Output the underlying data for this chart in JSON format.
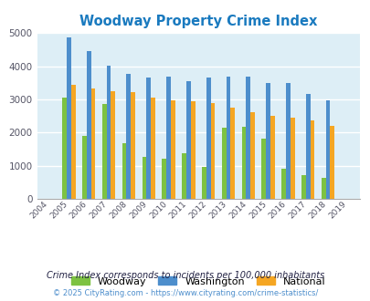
{
  "title": "Woodway Property Crime Index",
  "years": [
    2004,
    2005,
    2006,
    2007,
    2008,
    2009,
    2010,
    2011,
    2012,
    2013,
    2014,
    2015,
    2016,
    2017,
    2018,
    2019
  ],
  "woodway": [
    0,
    3050,
    1900,
    2870,
    1680,
    1260,
    1220,
    1360,
    950,
    2130,
    2160,
    1800,
    900,
    720,
    620,
    0
  ],
  "washington": [
    0,
    4880,
    4470,
    4020,
    3780,
    3660,
    3680,
    3560,
    3660,
    3680,
    3680,
    3480,
    3500,
    3160,
    2980,
    0
  ],
  "national": [
    0,
    3430,
    3340,
    3240,
    3220,
    3040,
    2960,
    2930,
    2900,
    2750,
    2620,
    2490,
    2460,
    2360,
    2200,
    0
  ],
  "woodway_color": "#7dc242",
  "washington_color": "#4d8ecc",
  "national_color": "#f5a623",
  "bg_color": "#ddeef6",
  "ylim": [
    0,
    5000
  ],
  "yticks": [
    0,
    1000,
    2000,
    3000,
    4000,
    5000
  ],
  "legend_labels": [
    "Woodway",
    "Washington",
    "National"
  ],
  "footnote1": "Crime Index corresponds to incidents per 100,000 inhabitants",
  "footnote2": "© 2025 CityRating.com - https://www.cityrating.com/crime-statistics/",
  "title_color": "#1a7abf",
  "footnote1_color": "#222244",
  "footnote2_color": "#4d8ecc"
}
